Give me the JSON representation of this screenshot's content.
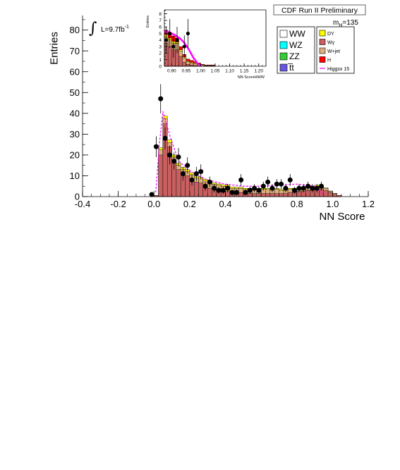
{
  "header": {
    "title": "CDF Run II Preliminary"
  },
  "luminosity": {
    "symbol": "∫",
    "label": "L=9.7fb",
    "exponent": "-1"
  },
  "mass_label": {
    "text": "m",
    "subscript": "H",
    "value": "=135"
  },
  "legend": {
    "left": [
      {
        "label": "WW",
        "color": "#ffffff"
      },
      {
        "label": "WZ",
        "color": "#00ffff"
      },
      {
        "label": "ZZ",
        "color": "#33cc33"
      },
      {
        "label": "t̅t",
        "color": "#6655dd"
      }
    ],
    "right": [
      {
        "label": "DY",
        "color": "#ffff00"
      },
      {
        "label": "Wγ",
        "color": "#c86060"
      },
      {
        "label": "W+jet",
        "color": "#ddb080"
      },
      {
        "label": "H",
        "color": "#ff0000"
      },
      {
        "label": "Higgsx 15",
        "color": "#ff00ff",
        "style": "line"
      }
    ]
  },
  "chart_data": [
    {
      "type": "bar",
      "title": "",
      "xlabel": "NN Score",
      "ylabel": "Entries",
      "xlim": [
        -0.4,
        1.2
      ],
      "ylim": [
        0,
        87
      ],
      "x_ticks": [
        -0.4,
        -0.2,
        0.0,
        0.2,
        0.4,
        0.6,
        0.8,
        1.0,
        1.2
      ],
      "x_tick_labels": [
        "-0.4",
        "-0.2",
        "0.0",
        "0.2",
        "0.4",
        "0.6",
        "0.8",
        "1.0",
        "1.2"
      ],
      "y_ticks": [
        0,
        10,
        20,
        30,
        40,
        50,
        60,
        70,
        80
      ],
      "y_tick_labels": [
        "0",
        "10",
        "20",
        "30",
        "40",
        "50",
        "60",
        "70",
        "80"
      ],
      "bin_width": 0.025,
      "bin_edges_start": -0.4,
      "series": [
        {
          "name": "Wγ",
          "color": "#c86060",
          "values": [
            0,
            0,
            0,
            0,
            0,
            0,
            0,
            0,
            0,
            0,
            0,
            0,
            0,
            0,
            0,
            0,
            0.5,
            20,
            35,
            24,
            17,
            13,
            11,
            10,
            8.5,
            7,
            6.5,
            5,
            4,
            3.5,
            3,
            2.5,
            2.5,
            2,
            2,
            2,
            1.5,
            1.5,
            1.5,
            1.5,
            1.5,
            1.5,
            1.5,
            1.5,
            1.5,
            1.5,
            2,
            2,
            2.5,
            2.5,
            3,
            3,
            3.5,
            3.5,
            3,
            2,
            1,
            0.5,
            0,
            0,
            0,
            0,
            0,
            0
          ]
        },
        {
          "name": "W+jet",
          "color": "#ddb080",
          "values": [
            0,
            0,
            0,
            0,
            0,
            0,
            0,
            0,
            0,
            0,
            0,
            0,
            0,
            0,
            0,
            0,
            0,
            2.5,
            2.5,
            2,
            2,
            2,
            2,
            2,
            2,
            2,
            2,
            2.5,
            2.5,
            2.5,
            2.5,
            2.5,
            2.5,
            2,
            2,
            2,
            2,
            2,
            2,
            2,
            2,
            2,
            2,
            2,
            1.5,
            1.5,
            1.5,
            1.5,
            1.5,
            1.5,
            1.5,
            1.5,
            1.5,
            1,
            1,
            0.5,
            0.5,
            0,
            0,
            0,
            0,
            0,
            0,
            0
          ]
        },
        {
          "name": "DY",
          "color": "#ffff00",
          "values": [
            0,
            0,
            0,
            0,
            0,
            0,
            0,
            0,
            0,
            0,
            0,
            0,
            0,
            0,
            0,
            0,
            0,
            1,
            1.2,
            1.2,
            1,
            1,
            1,
            1,
            1,
            0.8,
            0.8,
            0.8,
            0.8,
            0.6,
            0.6,
            0.6,
            0.6,
            0.6,
            0.5,
            0.5,
            0.5,
            0.5,
            0.5,
            0.5,
            0.5,
            0.5,
            0.5,
            0.5,
            0.5,
            0.5,
            0.5,
            0.5,
            0.5,
            0.5,
            0.5,
            0.5,
            0.5,
            0.3,
            0.2,
            0.2,
            0.1,
            0,
            0,
            0,
            0,
            0,
            0,
            0
          ]
        }
      ],
      "higgs_x15": {
        "name": "Higgsx 15",
        "color": "#ff00ff",
        "x": [
          0.01,
          0.03,
          0.05,
          0.07,
          0.09,
          0.11,
          0.13,
          0.15,
          0.17,
          0.19,
          0.21,
          0.25,
          0.3,
          0.35,
          0.4,
          0.5,
          0.6,
          0.7,
          0.8,
          0.9,
          0.95
        ],
        "y": [
          2,
          25,
          41,
          35,
          29,
          24,
          19,
          16,
          15,
          13,
          12,
          10,
          8,
          7,
          6,
          5,
          5,
          5.5,
          6,
          5,
          1
        ]
      },
      "data_points": {
        "name": "Data",
        "x": [
          -0.0125,
          0.0125,
          0.0375,
          0.0625,
          0.0875,
          0.1125,
          0.1375,
          0.1625,
          0.1875,
          0.2125,
          0.2375,
          0.2625,
          0.2875,
          0.3125,
          0.3375,
          0.3625,
          0.3875,
          0.4125,
          0.4375,
          0.4625,
          0.4875,
          0.5125,
          0.5375,
          0.5625,
          0.5875,
          0.6125,
          0.6375,
          0.6625,
          0.6875,
          0.7125,
          0.7375,
          0.7625,
          0.7875,
          0.8125,
          0.8375,
          0.8625,
          0.8875,
          0.9125,
          0.9375
        ],
        "y": [
          1,
          24,
          47,
          28,
          20,
          17,
          19,
          11,
          15,
          8,
          11,
          12,
          5,
          7,
          4,
          3,
          3,
          4,
          2,
          2,
          8,
          2,
          3,
          4,
          3,
          5,
          7,
          4,
          6,
          6,
          4,
          8,
          3,
          4,
          4,
          5,
          4,
          4,
          5
        ],
        "err": [
          1,
          5,
          7,
          5.3,
          4.5,
          4.1,
          4.4,
          3.3,
          3.9,
          2.8,
          3.3,
          3.5,
          2.2,
          2.6,
          2,
          1.7,
          1.7,
          2,
          1.4,
          1.4,
          2.8,
          1.4,
          1.7,
          2,
          1.7,
          2.2,
          2.6,
          2,
          2.4,
          2.4,
          2,
          2.8,
          1.7,
          2,
          2,
          2.2,
          2,
          2,
          2.2
        ]
      }
    },
    {
      "type": "bar",
      "title": "",
      "xlabel": "NN ScoreHWW",
      "ylabel": "Entries",
      "xlim": [
        0.875,
        1.225
      ],
      "ylim": [
        0,
        8.6
      ],
      "x_ticks": [
        0.9,
        0.95,
        1.0,
        1.05,
        1.1,
        1.15,
        1.2
      ],
      "x_tick_labels": [
        "0.90",
        "0.95",
        "1.00",
        "1.05",
        "1.10",
        "1.15",
        "1.20"
      ],
      "y_ticks": [
        0,
        1,
        2,
        3,
        4,
        5,
        6,
        7,
        8
      ],
      "y_tick_labels": [
        "0",
        "1",
        "2",
        "3",
        "4",
        "5",
        "6",
        "7",
        "8"
      ],
      "bin_width": 0.0125,
      "bin_edges_start": 0.875,
      "series": [
        {
          "name": "Wγ",
          "color": "#c86060",
          "values": [
            3.5,
            3,
            2.5,
            2.5,
            1.5,
            0.6,
            0.3,
            0.2,
            0.1,
            0,
            0,
            0,
            0,
            0,
            0,
            0,
            0,
            0,
            0,
            0,
            0,
            0,
            0,
            0,
            0,
            0,
            0,
            0
          ]
        },
        {
          "name": "W+jet",
          "color": "#ddb080",
          "values": [
            1,
            1,
            1,
            1,
            0.8,
            0.6,
            0.4,
            0.3,
            0.3,
            0.2,
            0.2,
            0.1,
            0.1,
            0.1,
            0,
            0,
            0,
            0,
            0,
            0,
            0,
            0,
            0,
            0,
            0,
            0,
            0,
            0
          ]
        },
        {
          "name": "DY",
          "color": "#ffff00",
          "values": [
            0.3,
            0.3,
            0.3,
            0.2,
            0.2,
            0.2,
            0.1,
            0.1,
            0.1,
            0.1,
            0,
            0,
            0,
            0,
            0,
            0,
            0,
            0,
            0,
            0,
            0,
            0,
            0,
            0,
            0,
            0,
            0,
            0
          ]
        },
        {
          "name": "H",
          "color": "#ff0000",
          "values": [
            0.7,
            0.7,
            0.8,
            0.6,
            0.5,
            0.4,
            0.3,
            0.3,
            0.2,
            0.2,
            0.1,
            0.1,
            0.1,
            0.1,
            0,
            0,
            0,
            0,
            0,
            0,
            0,
            0,
            0,
            0,
            0,
            0,
            0,
            0
          ]
        }
      ],
      "higgs_x15": {
        "name": "Higgsx 15",
        "color": "#ff00ff",
        "x": [
          0.875,
          0.89,
          0.91,
          0.93,
          0.945,
          0.96,
          0.975,
          0.99,
          1.0
        ],
        "y": [
          5.3,
          5.2,
          4.8,
          4.2,
          3.5,
          2.5,
          1.3,
          0.4,
          0
        ]
      },
      "data_points": {
        "name": "Data",
        "x": [
          0.88125,
          0.89375,
          0.90625,
          0.91875,
          0.94375,
          0.95625
        ],
        "y": [
          4,
          5,
          3,
          4,
          3,
          5
        ],
        "err": [
          2,
          2.2,
          1.7,
          2,
          1.7,
          2.2
        ]
      }
    }
  ]
}
